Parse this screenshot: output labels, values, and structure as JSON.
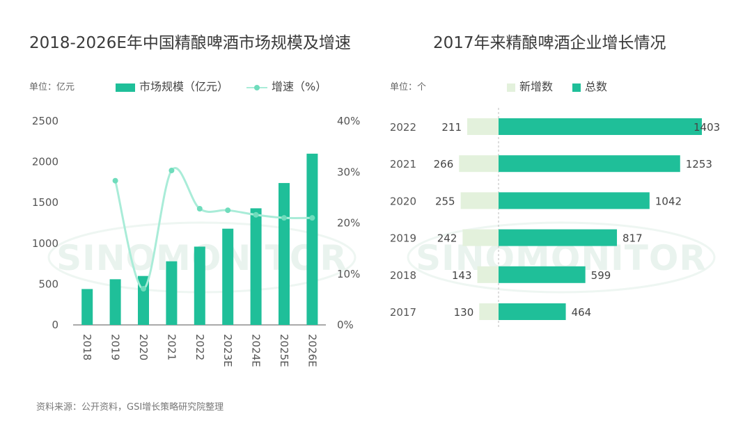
{
  "source_text": "资料来源：公开资料，GSI增长策略研究院整理",
  "watermark": "SINOMONITOR",
  "colors": {
    "bar": "#1fbf99",
    "line": "#a9ecd8",
    "new": "#e3f1dc",
    "total": "#1fbf99"
  },
  "chart_data": [
    {
      "type": "bar",
      "title": "2018-2026E年中国精酿啤酒市场规模及增速",
      "unit_label": "单位：亿元",
      "categories": [
        "2018",
        "2019",
        "2020",
        "2021",
        "2022",
        "2023E",
        "2024E",
        "2025E",
        "2026E"
      ],
      "series": [
        {
          "name": "市场规模（亿元）",
          "type": "bar",
          "axis": "left",
          "values": [
            440,
            560,
            600,
            780,
            960,
            1180,
            1430,
            1740,
            2100
          ]
        },
        {
          "name": "增速（%）",
          "type": "line",
          "axis": "right",
          "values": [
            null,
            28.3,
            7.1,
            30.3,
            22.8,
            22.5,
            21.6,
            21.0,
            21.0
          ]
        }
      ],
      "y_left": {
        "ticks": [
          "0",
          "500",
          "1000",
          "1500",
          "2000",
          "2500"
        ],
        "range": [
          0,
          2500
        ]
      },
      "y_right": {
        "ticks": [
          "0%",
          "10%",
          "20%",
          "30%",
          "40%"
        ],
        "range": [
          0,
          40
        ]
      },
      "legend_position": "top"
    },
    {
      "type": "bar",
      "orientation": "horizontal",
      "title": "2017年来精酿啤酒企业增长情况",
      "unit_label": "单位：个",
      "categories": [
        "2022",
        "2021",
        "2020",
        "2019",
        "2018",
        "2017"
      ],
      "series": [
        {
          "name": "新增数",
          "values": [
            211,
            266,
            255,
            242,
            143,
            130
          ]
        },
        {
          "name": "总数",
          "values": [
            1403,
            1253,
            1042,
            817,
            599,
            464
          ]
        }
      ],
      "legend_position": "top"
    }
  ]
}
